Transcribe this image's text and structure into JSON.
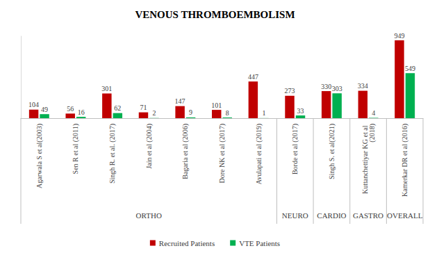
{
  "chart_data": {
    "type": "bar",
    "title": "VENOUS THROMBOEMBOLISM",
    "categories": [
      "Agarwala S et al(2003)",
      "Sen R et al (2011)",
      "Singh R. et al. (2017)",
      "Jain et al (2004)",
      "Bagaria et al (2006)",
      "Dore NK et al (2017)",
      "Avulapati et al (2019)",
      "Borde et al (2017)",
      "Singh S. et al(2021)",
      "Kuttanchettiyar KG et al (2018)",
      "Kamerkar DR et al (2016)"
    ],
    "category_groups": [
      "ORTHO",
      "ORTHO",
      "ORTHO",
      "ORTHO",
      "ORTHO",
      "ORTHO",
      "ORTHO",
      "NEURO",
      "CARDIO",
      "GASTRO",
      "OVERALL"
    ],
    "series": [
      {
        "name": "Recruited Patients",
        "color": "#C00000",
        "values": [
          104,
          56,
          301,
          71,
          147,
          101,
          447,
          273,
          330,
          334,
          949
        ]
      },
      {
        "name": "VTE Patients",
        "color": "#00B050",
        "values": [
          49,
          16,
          62,
          2,
          9,
          8,
          1,
          33,
          303,
          4,
          549
        ]
      }
    ],
    "ylim": [
      0,
      1000
    ],
    "data_labels": true,
    "tick_labels": "x",
    "grid": false,
    "legend": "bottom"
  }
}
